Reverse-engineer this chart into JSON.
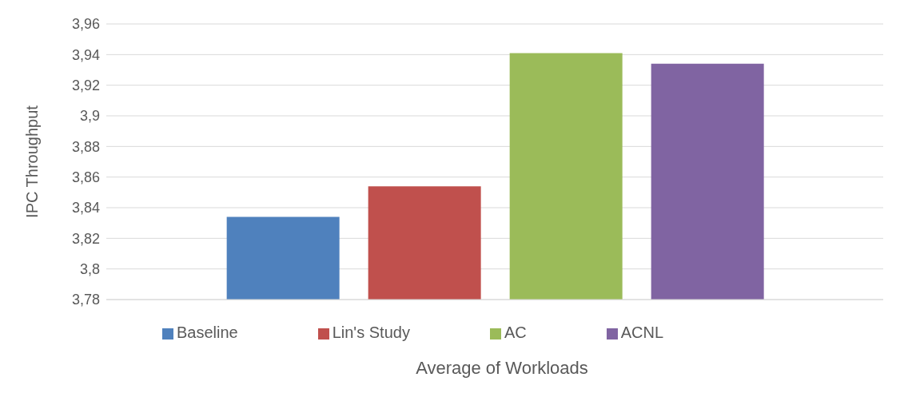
{
  "chart_data": {
    "type": "bar",
    "xlabel": "Average of Workloads",
    "ylabel": "IPC Throughput",
    "categories": [
      null
    ],
    "series": [
      {
        "name": "Baseline",
        "color": "#4f81bd",
        "values": [
          3.834
        ]
      },
      {
        "name": "Lin's Study",
        "color": "#c0504d",
        "values": [
          3.854
        ]
      },
      {
        "name": "AC",
        "color": "#9bbb59",
        "values": [
          3.941
        ]
      },
      {
        "name": "ACNL",
        "color": "#8064a2",
        "values": [
          3.934
        ]
      }
    ],
    "ylim": [
      3.78,
      3.96
    ],
    "yticks": [
      {
        "value": 3.78,
        "label": "3,78"
      },
      {
        "value": 3.8,
        "label": "3,8"
      },
      {
        "value": 3.82,
        "label": "3,82"
      },
      {
        "value": 3.84,
        "label": "3,84"
      },
      {
        "value": 3.86,
        "label": "3,86"
      },
      {
        "value": 3.88,
        "label": "3,88"
      },
      {
        "value": 3.9,
        "label": "3,9"
      },
      {
        "value": 3.92,
        "label": "3,92"
      },
      {
        "value": 3.94,
        "label": "3,94"
      },
      {
        "value": 3.96,
        "label": "3,96"
      }
    ],
    "grid": "y",
    "legend": "bottom"
  }
}
